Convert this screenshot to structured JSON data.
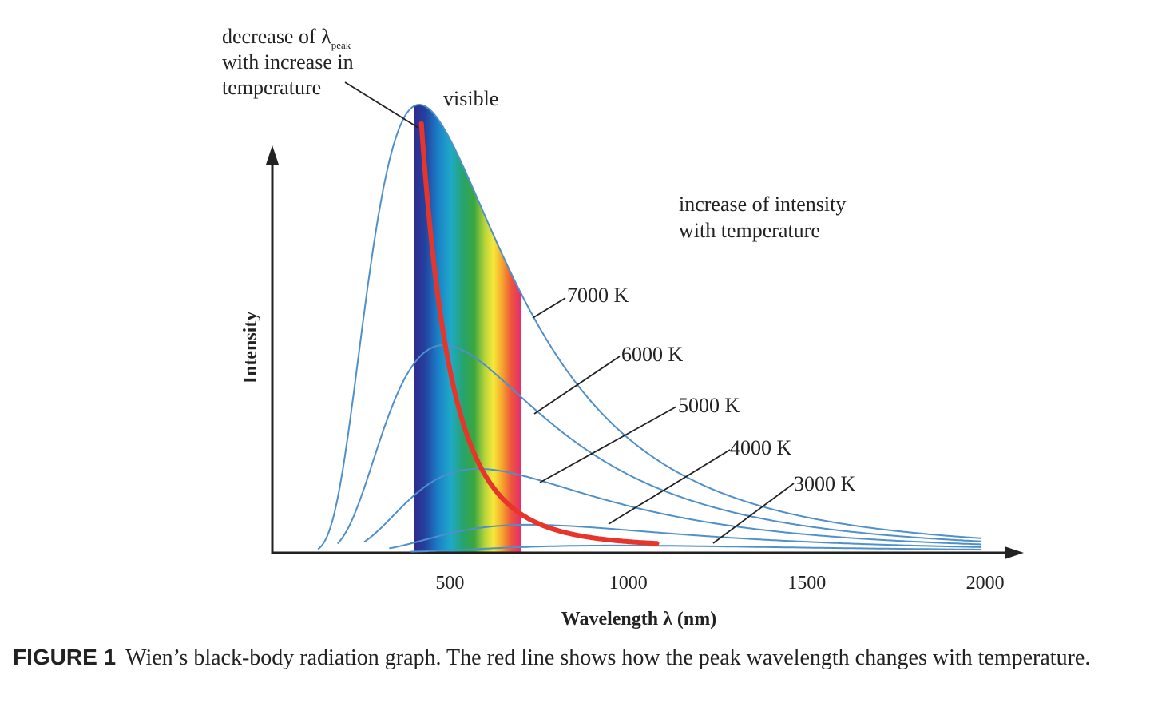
{
  "chart_data": {
    "type": "line",
    "xlabel": "Wavelength λ (nm)",
    "ylabel": "Intensity",
    "xlim": [
      0,
      2100
    ],
    "ylim": [
      0,
      1
    ],
    "x_ticks": [
      "500",
      "1000",
      "1500",
      "2000"
    ],
    "series": [
      {
        "name": "7000 K",
        "temperature": 7000,
        "color": "#4f8fca"
      },
      {
        "name": "6000 K",
        "temperature": 6000,
        "color": "#4f8fca"
      },
      {
        "name": "5000 K",
        "temperature": 5000,
        "color": "#4f8fca"
      },
      {
        "name": "4000 K",
        "temperature": 4000,
        "color": "#4f8fca"
      },
      {
        "name": "3000 K",
        "temperature": 3000,
        "color": "#4f8fca"
      }
    ],
    "peak_curve": {
      "color": "#e8352c",
      "x_range": [
        420,
        1080
      ]
    },
    "visible_band": {
      "label": "visible",
      "x_range": [
        400,
        700
      ]
    },
    "annotations": {
      "peak_shift_line1": "decrease of λ",
      "peak_shift_subscript": "peak",
      "peak_shift_line2": "with increase in",
      "peak_shift_line3": "temperature",
      "intensity_line1": "increase of intensity",
      "intensity_line2": "with temperature"
    },
    "legend_placement": "curve labels with leader lines, right side"
  },
  "caption": {
    "label": "FIGURE 1",
    "text": "Wien’s black-body radiation graph. The red line shows how the peak wavelength changes with temperature."
  }
}
